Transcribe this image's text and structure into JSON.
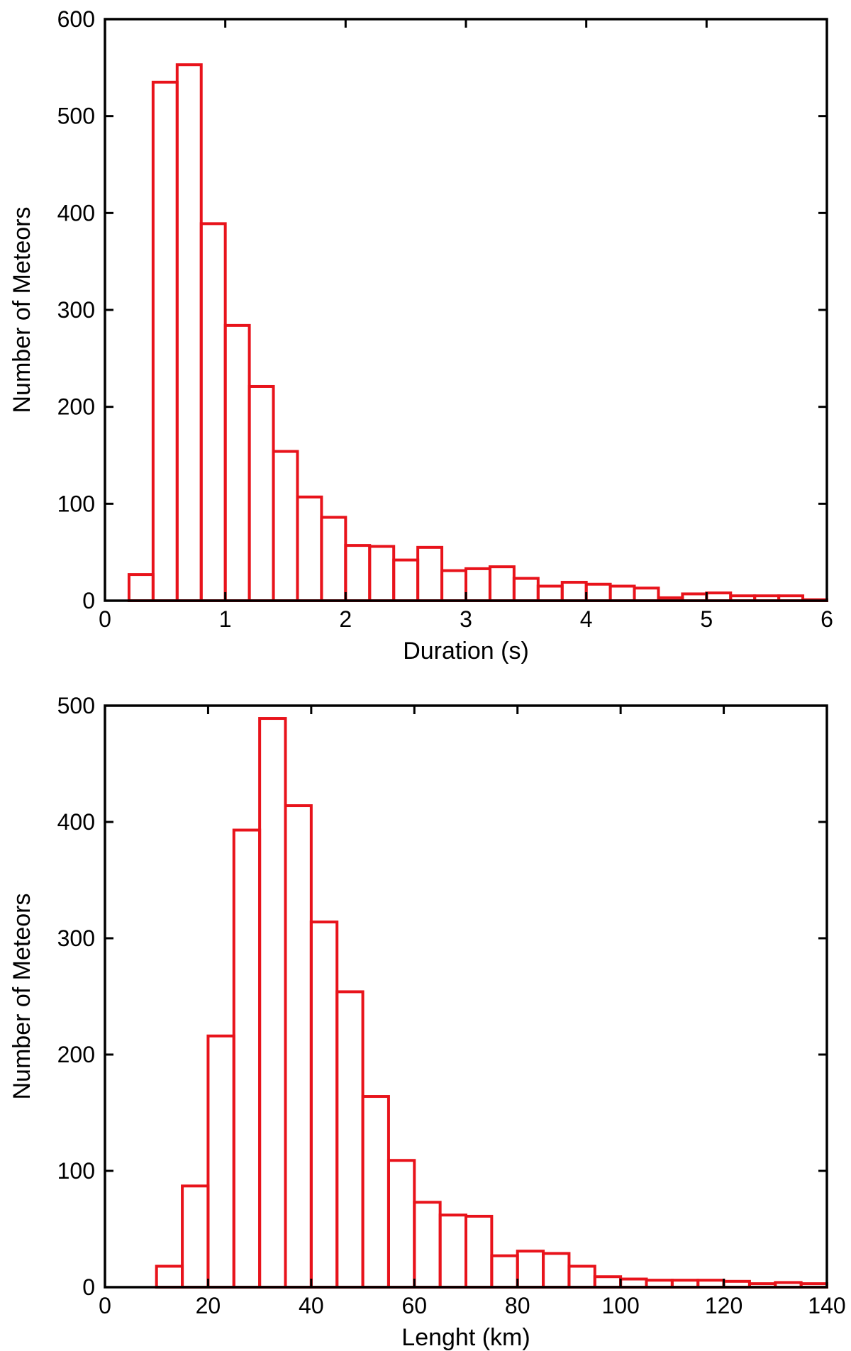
{
  "chart_data": [
    {
      "type": "bar",
      "subtype": "histogram",
      "title": "",
      "xlabel": "Duration (s)",
      "ylabel": "Number of Meteors",
      "xlim": [
        0,
        6
      ],
      "ylim": [
        0,
        600
      ],
      "xticks": [
        0,
        1,
        2,
        3,
        4,
        5,
        6
      ],
      "yticks": [
        0,
        100,
        200,
        300,
        400,
        500,
        600
      ],
      "bin_width": 0.2,
      "bin_start": 0.2,
      "values": [
        27,
        535,
        553,
        389,
        284,
        221,
        154,
        107,
        86,
        57,
        56,
        42,
        55,
        31,
        33,
        35,
        23,
        15,
        19,
        17,
        15,
        13,
        3,
        7,
        8,
        5,
        5,
        5,
        1
      ],
      "color": "#e8131b",
      "grid": false,
      "legend": "none"
    },
    {
      "type": "bar",
      "subtype": "histogram",
      "title": "",
      "xlabel": "Lenght (km)",
      "ylabel": "Number of Meteors",
      "xlim": [
        0,
        140
      ],
      "ylim": [
        0,
        500
      ],
      "xticks": [
        0,
        20,
        40,
        60,
        80,
        100,
        120,
        140
      ],
      "yticks": [
        0,
        100,
        200,
        300,
        400,
        500
      ],
      "bin_width": 5,
      "bin_start": 10,
      "values": [
        18,
        87,
        216,
        393,
        489,
        414,
        314,
        254,
        164,
        109,
        73,
        62,
        61,
        27,
        31,
        29,
        18,
        9,
        7,
        6,
        6,
        6,
        5,
        3,
        4,
        3
      ],
      "color": "#e8131b",
      "grid": false,
      "legend": "none"
    }
  ]
}
